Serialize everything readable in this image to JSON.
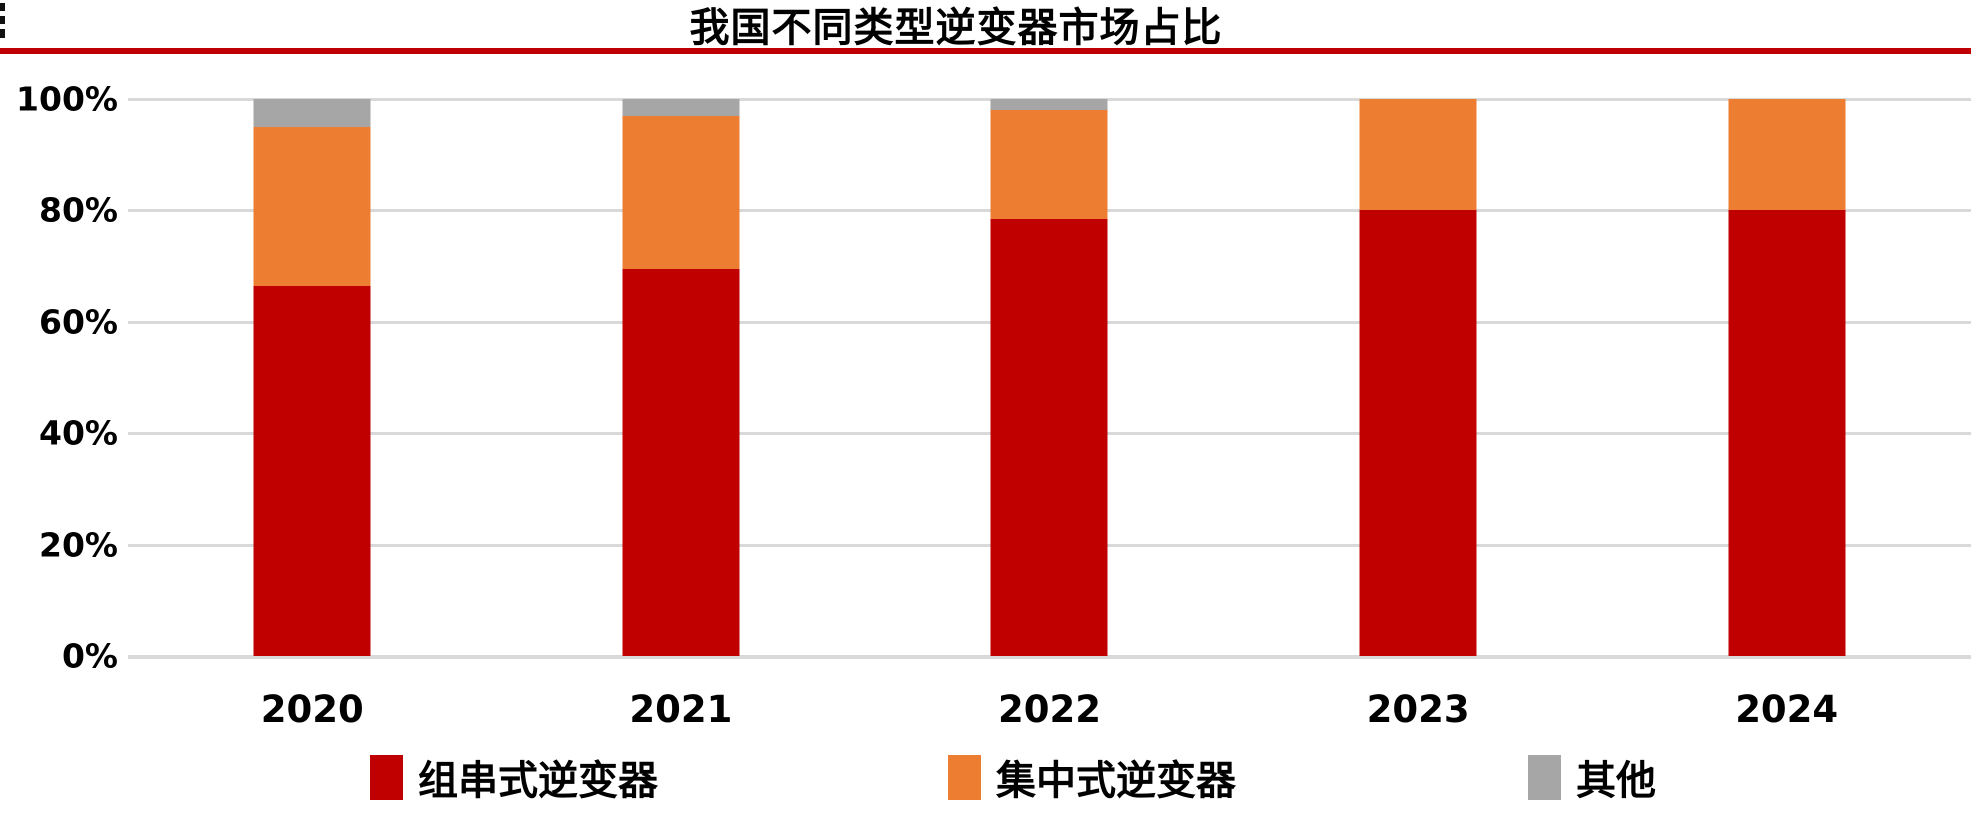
{
  "title": "我国不同类型逆变器市场占比",
  "accent_color": "#C00000",
  "grid_color": "#D9D9D9",
  "text_color": "#000000",
  "chart_data": {
    "type": "bar",
    "stacked": true,
    "title": "我国不同类型逆变器市场占比",
    "xlabel": "",
    "ylabel": "",
    "categories": [
      "2020",
      "2021",
      "2022",
      "2023",
      "2024"
    ],
    "series": [
      {
        "name": "组串式逆变器",
        "color": "#C00000",
        "values": [
          66.5,
          69.5,
          78.5,
          80,
          80
        ]
      },
      {
        "name": "集中式逆变器",
        "color": "#ED7D31",
        "values": [
          28.5,
          27.5,
          19.5,
          20,
          20
        ]
      },
      {
        "name": "其他",
        "color": "#A6A6A6",
        "values": [
          5.0,
          3.0,
          2.0,
          0,
          0
        ]
      }
    ],
    "ylim": [
      0,
      100
    ],
    "y_ticks": [
      "100%",
      "80%",
      "60%",
      "40%",
      "20%",
      "0%"
    ],
    "y_tick_values": [
      100,
      80,
      60,
      40,
      20,
      0
    ],
    "grid": true,
    "legend_position": "bottom"
  },
  "legend": {
    "items": [
      {
        "label": "组串式逆变器",
        "color": "#C00000"
      },
      {
        "label": "集中式逆变器",
        "color": "#ED7D31"
      },
      {
        "label": "其他",
        "color": "#A6A6A6"
      }
    ]
  }
}
